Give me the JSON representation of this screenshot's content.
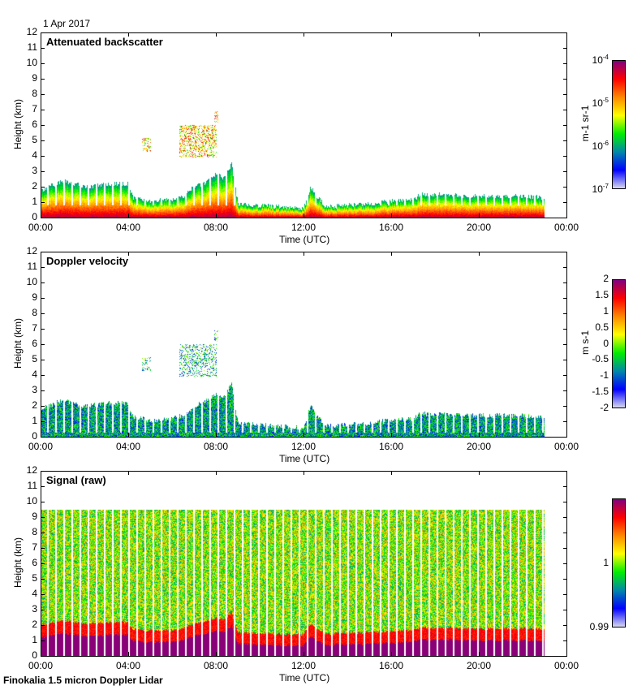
{
  "date_label": "1 Apr 2017",
  "footer": "Finokalia 1.5 micron Doppler Lidar",
  "colors": {
    "stops": [
      "#d8d8ee",
      "#0000ff",
      "#0088aa",
      "#00ee00",
      "#ffff00",
      "#ff8800",
      "#ff0000",
      "#800080"
    ]
  },
  "chart_data": [
    {
      "type": "heatmap",
      "title": "Attenuated backscatter",
      "xlabel": "Time (UTC)",
      "ylabel": "Height (km)",
      "xticks": [
        "00:00",
        "04:00",
        "08:00",
        "12:00",
        "16:00",
        "20:00",
        "00:00"
      ],
      "yticks": [
        "0",
        "1",
        "2",
        "3",
        "4",
        "5",
        "6",
        "7",
        "8",
        "9",
        "10",
        "11",
        "12"
      ],
      "ylim": [
        0,
        12
      ],
      "xlim_hours": [
        0,
        24
      ],
      "data_end_hour": 23,
      "colorbar": {
        "label": "m-1 sr-1",
        "ticks": [
          "10-4",
          "10-5",
          "10-6",
          "10-7"
        ],
        "range": [
          1e-07,
          0.0001
        ],
        "scale": "log"
      },
      "layer_top_km": {
        "hours": [
          0,
          1,
          2,
          3,
          4,
          4.2,
          5,
          6,
          6.5,
          7,
          7.5,
          8,
          8.4,
          8.7,
          9,
          10,
          11,
          12,
          12.3,
          13,
          14,
          15,
          16,
          17,
          17.3,
          18,
          20,
          22,
          23
        ],
        "values": [
          1.8,
          2.4,
          2.0,
          2.2,
          2.2,
          1.3,
          1.1,
          1.2,
          1.4,
          2.0,
          2.3,
          2.8,
          2.6,
          3.5,
          0.9,
          0.8,
          0.7,
          0.6,
          2.0,
          0.7,
          0.8,
          0.9,
          1.1,
          1.2,
          1.5,
          1.5,
          1.4,
          1.4,
          1.3
        ]
      },
      "elevated_layers_km": [
        {
          "start_hour": 4.6,
          "end_hour": 5.0,
          "bottom": 4.3,
          "top": 5.2
        },
        {
          "start_hour": 6.3,
          "end_hour": 8.0,
          "bottom": 3.9,
          "top": 6.0
        },
        {
          "start_hour": 7.9,
          "end_hour": 8.1,
          "bottom": 6.2,
          "top": 6.9
        }
      ]
    },
    {
      "type": "heatmap",
      "title": "Doppler velocity",
      "xlabel": "Time (UTC)",
      "ylabel": "Height (km)",
      "xticks": [
        "00:00",
        "04:00",
        "08:00",
        "12:00",
        "16:00",
        "20:00",
        "00:00"
      ],
      "yticks": [
        "0",
        "1",
        "2",
        "3",
        "4",
        "5",
        "6",
        "7",
        "8",
        "9",
        "10",
        "11",
        "12"
      ],
      "ylim": [
        0,
        12
      ],
      "colorbar": {
        "label": "m s-1",
        "ticks": [
          "2",
          "1.5",
          "1",
          "0.5",
          "0",
          "-0.5",
          "-1",
          "-1.5",
          "-2"
        ],
        "range": [
          -2,
          2
        ]
      }
    },
    {
      "type": "heatmap",
      "title": "Signal (raw)",
      "xlabel": "Time (UTC)",
      "ylabel": "Height (km)",
      "xticks": [
        "00:00",
        "04:00",
        "08:00",
        "12:00",
        "16:00",
        "20:00",
        "00:00"
      ],
      "yticks": [
        "0",
        "1",
        "2",
        "3",
        "4",
        "5",
        "6",
        "7",
        "8",
        "9",
        "10",
        "11",
        "12"
      ],
      "ylim": [
        0,
        12
      ],
      "max_range_km": 9.5,
      "colorbar": {
        "label": "",
        "ticks": [
          "1",
          "0.99"
        ],
        "range": [
          0.99,
          1.01
        ]
      }
    }
  ]
}
